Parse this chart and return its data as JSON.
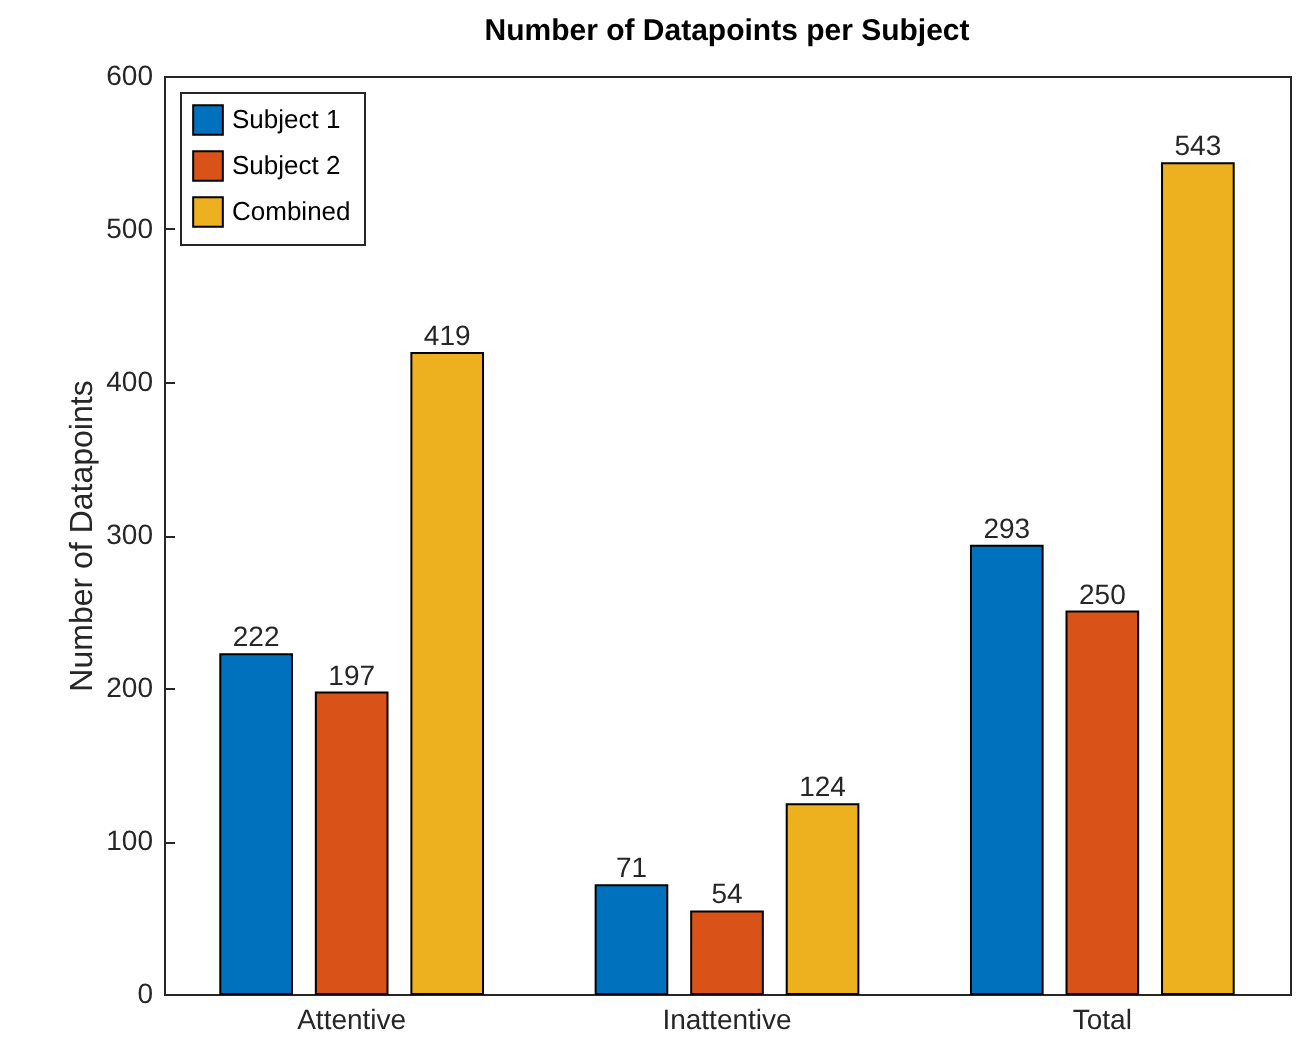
{
  "chart_data": {
    "type": "bar",
    "title": "Number of Datapoints per Subject",
    "ylabel": "Number of Datapoints",
    "categories": [
      "Attentive",
      "Inattentive",
      "Total"
    ],
    "series": [
      {
        "name": "Subject 1",
        "color": "#0072bd",
        "values": [
          222,
          71,
          293
        ]
      },
      {
        "name": "Subject 2",
        "color": "#d95319",
        "values": [
          197,
          54,
          250
        ]
      },
      {
        "name": "Combined",
        "color": "#edb120",
        "values": [
          419,
          124,
          543
        ]
      }
    ],
    "ylim": [
      0,
      600
    ],
    "yticks": [
      0,
      100,
      200,
      300,
      400,
      500,
      600
    ],
    "data_labels": true,
    "legend": "top left",
    "grid": false
  }
}
